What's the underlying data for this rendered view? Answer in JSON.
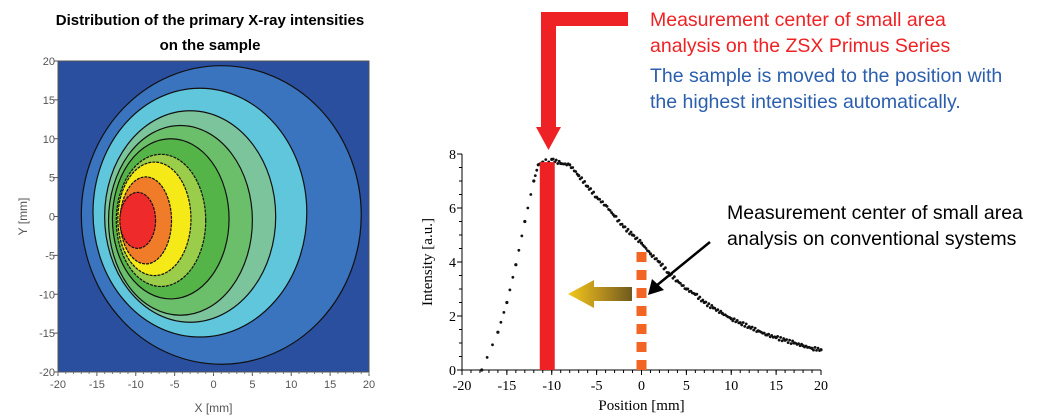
{
  "left_title": [
    "Distribution of the primary X-ray intensities",
    "on the sample"
  ],
  "annotations": {
    "zsx": [
      "Measurement center of small area",
      "analysis on the ZSX Primus Series"
    ],
    "moved": [
      "The sample is moved to the position with",
      "the highest intensities automatically."
    ],
    "conventional": [
      "Measurement center of small area",
      "analysis on conventional systems"
    ]
  },
  "colors": {
    "zsx_red": "#ee2224",
    "conventional_orange": "#f26522",
    "text_blue": "#2b5fae",
    "move_arrow_gold": "#c9a227"
  },
  "chart_data": [
    {
      "type": "heatmap",
      "subtype": "contour",
      "title": "Distribution of the primary X-ray intensities on the sample",
      "xlabel": "X [mm]",
      "ylabel": "Y [mm]",
      "xlim": [
        -20,
        20
      ],
      "ylim": [
        -20,
        20
      ],
      "xticks": [
        "-20",
        "-15",
        "-10",
        "-5",
        "0",
        "5",
        "10",
        "15",
        "20"
      ],
      "yticks": [
        "20",
        "15",
        "10",
        "5",
        "0",
        "-5",
        "-10",
        "-15",
        "-20"
      ],
      "peak": {
        "x": -10,
        "y": 0
      },
      "level_colors": [
        "#2a4f9e",
        "#3a74bf",
        "#5fc6dc",
        "#7cc59c",
        "#6cbf6a",
        "#55b447",
        "#9acd4a",
        "#f5ea17",
        "#f07c2a",
        "#ee2a2a"
      ]
    },
    {
      "type": "scatter",
      "xlabel": "Position [mm]",
      "ylabel": "Intensity [a.u.]",
      "xlim": [
        -20,
        20
      ],
      "ylim": [
        0,
        8
      ],
      "xticks": [
        "-20",
        "-15",
        "-10",
        "-5",
        "0",
        "5",
        "10",
        "15",
        "20"
      ],
      "yticks": [
        "0",
        "2",
        "4",
        "6",
        "8"
      ],
      "x": [
        -17.8,
        -16,
        -15,
        -14,
        -13,
        -12,
        -11.5,
        -11,
        -10,
        -9,
        -8,
        -7,
        -6,
        -5,
        -4,
        -3,
        -2,
        -1,
        0,
        1,
        2,
        3,
        4,
        5,
        6,
        7,
        8,
        9,
        10,
        11,
        12,
        13,
        14,
        15,
        16,
        17,
        18,
        19,
        20
      ],
      "y": [
        0,
        1.4,
        2.5,
        3.9,
        5.5,
        7.0,
        7.6,
        7.7,
        7.8,
        7.65,
        7.6,
        7.2,
        6.8,
        6.4,
        6.1,
        5.7,
        5.3,
        5.0,
        4.7,
        4.3,
        4.0,
        3.6,
        3.3,
        3.0,
        2.8,
        2.5,
        2.3,
        2.1,
        1.9,
        1.75,
        1.6,
        1.45,
        1.3,
        1.2,
        1.1,
        1.0,
        0.9,
        0.8,
        0.75
      ],
      "markers": {
        "zsx_center_x": -10.5,
        "conventional_center_x": 0
      }
    }
  ]
}
